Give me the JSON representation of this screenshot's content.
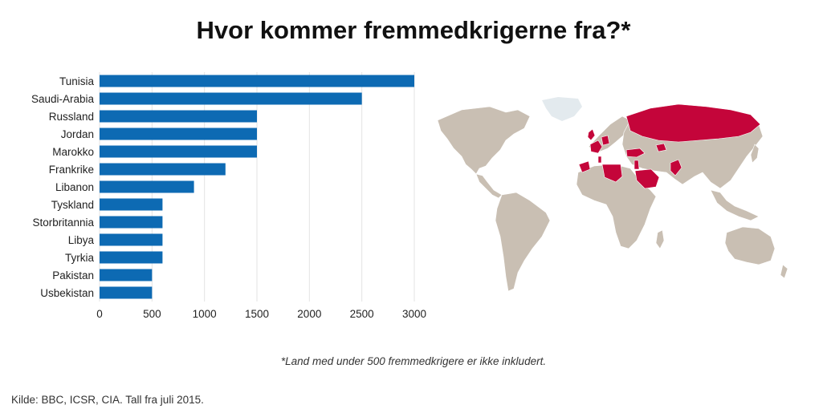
{
  "title": "Hvor kommer fremmedkrigerne fra?*",
  "footnote": "*Land med under 500 fremmedkrigere er ikke inkludert.",
  "source": "Kilde: BBC, ICSR, CIA. Tall fra juli 2015.",
  "colors": {
    "bar": "#0d6ab3",
    "map_land": "#c9bfb3",
    "map_highlight": "#c4053a",
    "map_greenland": "#e3eaee",
    "grid": "#e3e3e3"
  },
  "chart_data": {
    "type": "bar",
    "orientation": "horizontal",
    "categories": [
      "Tunisia",
      "Saudi-Arabia",
      "Russland",
      "Jordan",
      "Marokko",
      "Frankrike",
      "Libanon",
      "Tyskland",
      "Storbritannia",
      "Libya",
      "Tyrkia",
      "Pakistan",
      "Usbekistan"
    ],
    "values": [
      3000,
      2500,
      1500,
      1500,
      1500,
      1200,
      900,
      600,
      600,
      600,
      600,
      500,
      500
    ],
    "xlim": [
      0,
      3000
    ],
    "xticks": [
      0,
      500,
      1000,
      1500,
      2000,
      2500,
      3000
    ],
    "grid": true,
    "xlabel": "",
    "ylabel": ""
  },
  "map": {
    "highlighted_countries": [
      "Tunisia",
      "Saudi-Arabia",
      "Russland",
      "Jordan",
      "Marokko",
      "Frankrike",
      "Libanon",
      "Tyskland",
      "Storbritannia",
      "Libya",
      "Tyrkia",
      "Pakistan",
      "Usbekistan"
    ]
  }
}
